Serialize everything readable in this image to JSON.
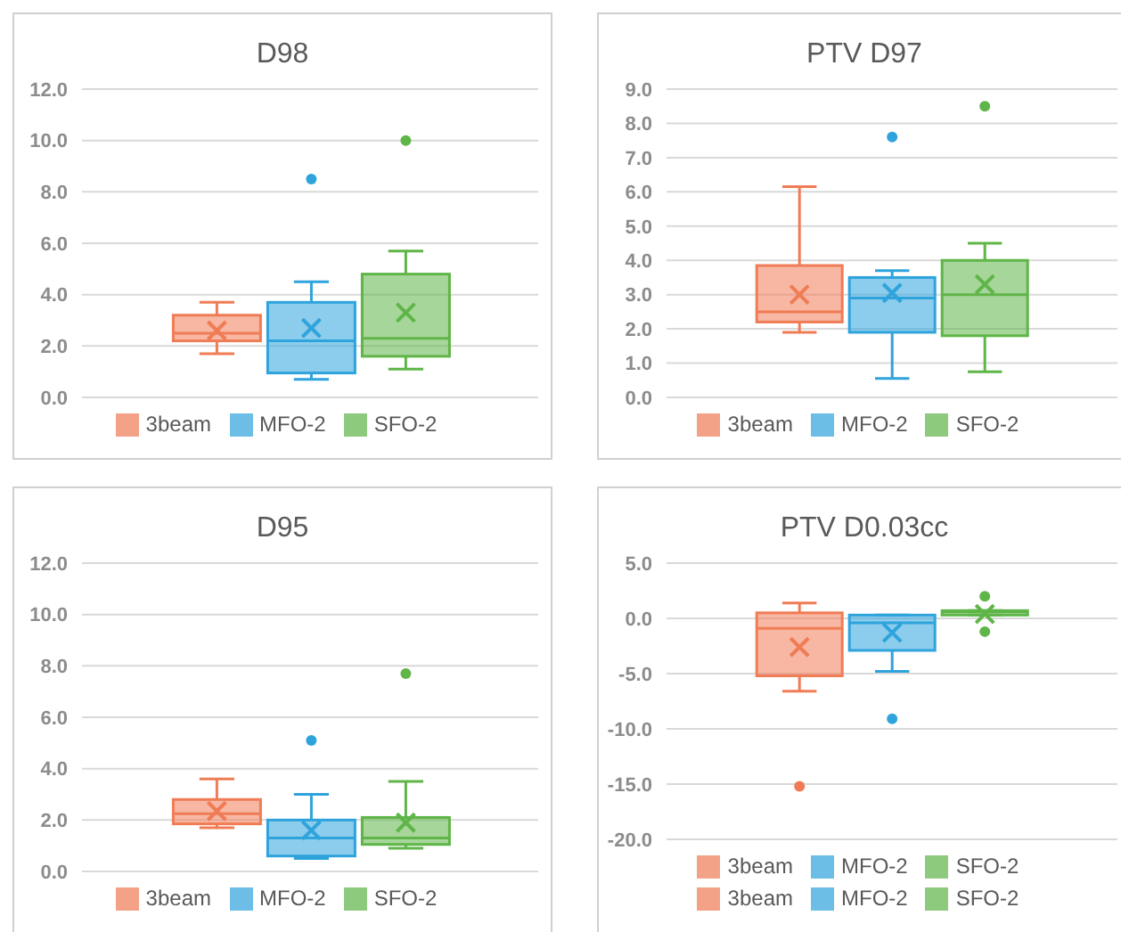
{
  "chart_data": [
    {
      "type": "box",
      "title": "D98",
      "categories": [
        null
      ],
      "ylim": [
        0,
        12
      ],
      "yticks": [
        {
          "value": 0,
          "label": "0.0"
        },
        {
          "value": 2,
          "label": "2.0"
        },
        {
          "value": 4,
          "label": "4.0"
        },
        {
          "value": 6,
          "label": "6.0"
        },
        {
          "value": 8,
          "label": "8.0"
        },
        {
          "value": 10,
          "label": "10.0"
        },
        {
          "value": 12,
          "label": "12.0"
        }
      ],
      "grid": "y",
      "legend": "bottom",
      "series": [
        {
          "name": "3beam",
          "color": "#f07c55",
          "boxes": [
            {
              "low": 1.7,
              "q1": 2.2,
              "median": 2.5,
              "q3": 3.2,
              "high": 3.7,
              "mean": 2.6
            }
          ]
        },
        {
          "name": "MFO-2",
          "color": "#2ea3dc",
          "boxes": [
            {
              "low": 0.7,
              "q1": 0.95,
              "median": 2.2,
              "q3": 3.7,
              "high": 4.5,
              "mean": 2.7,
              "outliers": [
                8.5
              ]
            }
          ]
        },
        {
          "name": "SFO-2",
          "color": "#5fb548",
          "boxes": [
            {
              "low": 1.1,
              "q1": 1.6,
              "median": 2.3,
              "q3": 4.8,
              "high": 5.7,
              "mean": 3.3,
              "outliers": [
                10.0
              ]
            }
          ]
        }
      ]
    },
    {
      "type": "box",
      "title": "PTV D97",
      "categories": [
        null
      ],
      "ylim": [
        0,
        9
      ],
      "yticks": [
        {
          "value": 0,
          "label": "0.0"
        },
        {
          "value": 1,
          "label": "1.0"
        },
        {
          "value": 2,
          "label": "2.0"
        },
        {
          "value": 3,
          "label": "3.0"
        },
        {
          "value": 4,
          "label": "4.0"
        },
        {
          "value": 5,
          "label": "5.0"
        },
        {
          "value": 6,
          "label": "6.0"
        },
        {
          "value": 7,
          "label": "7.0"
        },
        {
          "value": 8,
          "label": "8.0"
        },
        {
          "value": 9,
          "label": "9.0"
        }
      ],
      "grid": "y",
      "legend": "bottom",
      "series": [
        {
          "name": "3beam",
          "color": "#f07c55",
          "boxes": [
            {
              "low": 1.9,
              "q1": 2.2,
              "median": 2.5,
              "q3": 3.85,
              "high": 6.15,
              "mean": 3.0
            }
          ]
        },
        {
          "name": "MFO-2",
          "color": "#2ea3dc",
          "boxes": [
            {
              "low": 0.55,
              "q1": 1.9,
              "median": 2.9,
              "q3": 3.5,
              "high": 3.7,
              "mean": 3.05,
              "outliers": [
                7.6
              ]
            }
          ]
        },
        {
          "name": "SFO-2",
          "color": "#5fb548",
          "boxes": [
            {
              "low": 0.75,
              "q1": 1.8,
              "median": 3.0,
              "q3": 4.0,
              "high": 4.5,
              "mean": 3.3,
              "outliers": [
                8.5
              ]
            }
          ]
        }
      ]
    },
    {
      "type": "box",
      "title": "D95",
      "categories": [
        null
      ],
      "ylim": [
        0,
        12
      ],
      "yticks": [
        {
          "value": 0,
          "label": "0.0"
        },
        {
          "value": 2,
          "label": "2.0"
        },
        {
          "value": 4,
          "label": "4.0"
        },
        {
          "value": 6,
          "label": "6.0"
        },
        {
          "value": 8,
          "label": "8.0"
        },
        {
          "value": 10,
          "label": "10.0"
        },
        {
          "value": 12,
          "label": "12.0"
        }
      ],
      "grid": "y",
      "legend": "bottom",
      "series": [
        {
          "name": "3beam",
          "color": "#f07c55",
          "boxes": [
            {
              "low": 1.7,
              "q1": 1.85,
              "median": 2.25,
              "q3": 2.8,
              "high": 3.6,
              "mean": 2.35
            }
          ]
        },
        {
          "name": "MFO-2",
          "color": "#2ea3dc",
          "boxes": [
            {
              "low": 0.5,
              "q1": 0.6,
              "median": 1.3,
              "q3": 2.0,
              "high": 3.0,
              "mean": 1.6,
              "outliers": [
                5.1
              ]
            }
          ]
        },
        {
          "name": "SFO-2",
          "color": "#5fb548",
          "boxes": [
            {
              "low": 0.9,
              "q1": 1.05,
              "median": 1.3,
              "q3": 2.1,
              "high": 3.5,
              "mean": 1.9,
              "outliers": [
                7.7
              ]
            }
          ]
        }
      ]
    },
    {
      "type": "box",
      "title": "PTV D0.03cc",
      "categories": [
        null
      ],
      "ylim": [
        -20,
        5
      ],
      "yticks": [
        {
          "value": -20,
          "label": "-20.0"
        },
        {
          "value": -15,
          "label": "-15.0"
        },
        {
          "value": -10,
          "label": "-10.0"
        },
        {
          "value": -5,
          "label": "-5.0"
        },
        {
          "value": 0,
          "label": "0.0"
        },
        {
          "value": 5,
          "label": "5.0"
        }
      ],
      "grid": "y",
      "legend": "bottom",
      "series": [
        {
          "name": "3beam",
          "color": "#f07c55",
          "boxes": [
            {
              "low": -6.6,
              "q1": -5.2,
              "median": -0.9,
              "q3": 0.5,
              "high": 1.4,
              "mean": -2.6,
              "outliers": [
                -15.2
              ]
            }
          ]
        },
        {
          "name": "MFO-2",
          "color": "#2ea3dc",
          "boxes": [
            {
              "low": -4.8,
              "q1": -2.9,
              "median": -0.4,
              "q3": 0.3,
              "high": 0.3,
              "mean": -1.3,
              "outliers": [
                -9.1
              ]
            }
          ]
        },
        {
          "name": "SFO-2",
          "color": "#5fb548",
          "boxes": [
            {
              "low": 0.3,
              "q1": 0.3,
              "median": 0.6,
              "q3": 0.7,
              "high": 0.7,
              "mean": 0.4,
              "outliers": [
                2.0,
                -1.2
              ]
            }
          ]
        },
        {
          "name": "3beam",
          "color": "#f07c55",
          "values": [
            null
          ]
        },
        {
          "name": "MFO-2",
          "color": "#2ea3dc",
          "values": [
            null
          ]
        },
        {
          "name": "SFO-2",
          "color": "#5fb548",
          "values": [
            null
          ]
        }
      ]
    }
  ]
}
